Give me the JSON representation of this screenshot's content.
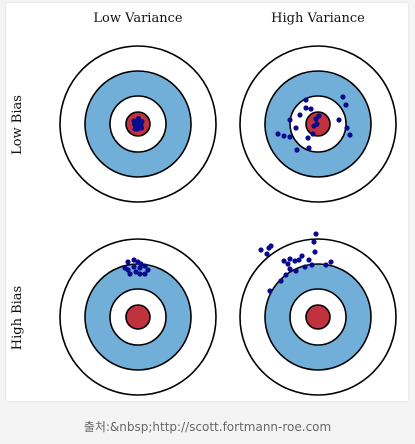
{
  "diagram": {
    "column_labels": [
      "Low Variance",
      "High Variance"
    ],
    "row_labels": [
      "Low Bias",
      "High Bias"
    ],
    "colors": {
      "ring_outer": "#ffffff",
      "ring_middle": "#72afd8",
      "ring_inner": "#ffffff",
      "bullseye": "#c1323f",
      "stroke": "#000000",
      "dots": "#0a0a8c"
    },
    "targets": [
      {
        "name": "low-bias-low-variance",
        "dots": [
          [
            -1.5,
            -2.5
          ],
          [
            1.5,
            -3
          ],
          [
            -3.5,
            0
          ],
          [
            0,
            0
          ],
          [
            3,
            1
          ],
          [
            -2,
            2.5
          ],
          [
            1.5,
            2.5
          ],
          [
            -0.5,
            5
          ],
          [
            2.5,
            -0.5
          ],
          [
            0.5,
            -5.5
          ],
          [
            -4,
            -3
          ],
          [
            4,
            -2.5
          ],
          [
            -1,
            3.5
          ],
          [
            3.5,
            4
          ],
          [
            -3,
            5
          ]
        ]
      },
      {
        "name": "low-bias-high-variance",
        "dots": [
          [
            -12,
            -24
          ],
          [
            -12,
            -16
          ],
          [
            -18,
            -9
          ],
          [
            -22,
            4
          ],
          [
            -28,
            -4
          ],
          [
            -40,
            10
          ],
          [
            -28,
            13
          ],
          [
            -34,
            12
          ],
          [
            -21,
            26
          ],
          [
            -9,
            24
          ],
          [
            -10,
            14
          ],
          [
            -5,
            10
          ],
          [
            -4,
            2
          ],
          [
            -2,
            -5
          ],
          [
            1,
            -8
          ],
          [
            25,
            -27
          ],
          [
            28,
            -19
          ],
          [
            29,
            4
          ],
          [
            32,
            11
          ],
          [
            21,
            -4
          ],
          [
            -7,
            -15
          ],
          [
            -1,
            0
          ]
        ]
      },
      {
        "name": "high-bias-low-variance",
        "dots": [
          [
            -13,
            -49
          ],
          [
            -10,
            -55
          ],
          [
            -4,
            -57
          ],
          [
            0,
            -55
          ],
          [
            3,
            -53
          ],
          [
            7,
            -51
          ],
          [
            10,
            -47
          ],
          [
            7,
            -43
          ],
          [
            2,
            -43
          ],
          [
            -2,
            -45
          ],
          [
            -8,
            -43
          ],
          [
            -4,
            -50
          ],
          [
            2,
            -49
          ],
          [
            -10,
            -47
          ]
        ]
      },
      {
        "name": "high-bias-high-variance",
        "dots": [
          [
            -57,
            -67
          ],
          [
            -49,
            -69
          ],
          [
            -47,
            -71
          ],
          [
            -51,
            -63
          ],
          [
            -34,
            -56
          ],
          [
            -28,
            -58
          ],
          [
            -23,
            -56
          ],
          [
            -19,
            -57
          ],
          [
            -16,
            -61
          ],
          [
            -9,
            -57
          ],
          [
            -3,
            -65
          ],
          [
            -4,
            -75
          ],
          [
            -2,
            -83
          ],
          [
            8,
            -52
          ],
          [
            13,
            -55
          ],
          [
            -28,
            -48
          ],
          [
            -32,
            -42
          ],
          [
            -37,
            -36
          ],
          [
            -48,
            -26
          ],
          [
            -13,
            -50
          ],
          [
            -22,
            -46
          ],
          [
            -6,
            -52
          ],
          [
            -30,
            -53
          ]
        ]
      }
    ]
  },
  "caption": "출처:&nbsp;http://scott.fortmann-roe.com"
}
